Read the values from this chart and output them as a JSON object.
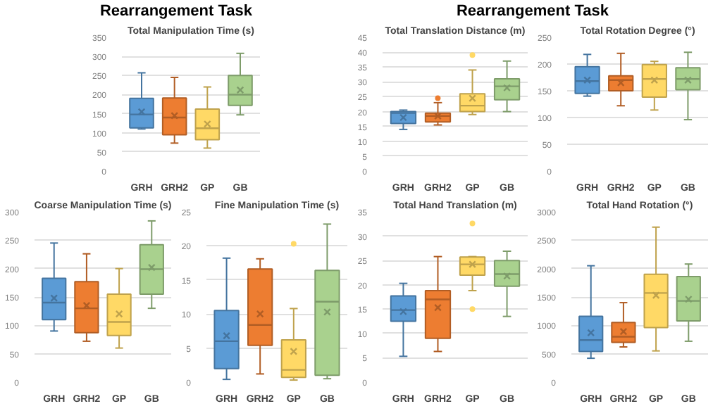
{
  "chart_data": [
    {
      "type": "box",
      "annotations": [
        "Rearrangement Task"
      ],
      "title": "Total Manipulation Time (s)",
      "categories": [
        "GRH",
        "GRH2",
        "GP",
        "GB"
      ],
      "colors": [
        "#5b9bd5",
        "#ed7d31",
        "#ffd966",
        "#a9d18e"
      ],
      "ylim": [
        0,
        350
      ],
      "yticks": [
        0,
        50,
        100,
        150,
        200,
        250,
        300,
        350
      ],
      "grid": "y",
      "boxes": [
        {
          "low": 110,
          "q1": 113,
          "median": 148,
          "q3": 190,
          "high": 257,
          "mean": 155
        },
        {
          "low": 73,
          "q1": 95,
          "median": 140,
          "q3": 191,
          "high": 245,
          "mean": 145
        },
        {
          "low": 60,
          "q1": 82,
          "median": 112,
          "q3": 162,
          "high": 220,
          "mean": 123
        },
        {
          "low": 147,
          "q1": 172,
          "median": 200,
          "q3": 250,
          "high": 308,
          "mean": 212
        }
      ]
    },
    {
      "type": "box",
      "annotations": [
        "Rearrangement Task"
      ],
      "title": "Total Translation Distance (m)",
      "categories": [
        "GRH",
        "GRH2",
        "GP",
        "GB"
      ],
      "colors": [
        "#5b9bd5",
        "#ed7d31",
        "#ffd966",
        "#a9d18e"
      ],
      "ylim": [
        0,
        45
      ],
      "yticks": [
        0,
        5,
        10,
        15,
        20,
        25,
        30,
        35,
        40,
        45
      ],
      "grid": "y",
      "boxes": [
        {
          "low": 14,
          "q1": 16,
          "median": 19.5,
          "q3": 20,
          "high": 20.5,
          "mean": 18
        },
        {
          "low": 15.5,
          "q1": 16.5,
          "median": 18.5,
          "q3": 19.5,
          "high": 23,
          "mean": 18.5,
          "outliers": [
            24.5
          ]
        },
        {
          "low": 19,
          "q1": 20,
          "median": 22,
          "q3": 26,
          "high": 34,
          "mean": 24.5,
          "outliers": [
            39
          ]
        },
        {
          "low": 20,
          "q1": 24,
          "median": 28.5,
          "q3": 31,
          "high": 37,
          "mean": 28
        }
      ]
    },
    {
      "type": "box",
      "title": "Total Rotation Degree (°)",
      "categories": [
        "GRH",
        "GRH2",
        "GP",
        "GB"
      ],
      "colors": [
        "#5b9bd5",
        "#ed7d31",
        "#ffd966",
        "#a9d18e"
      ],
      "ylim": [
        0,
        250
      ],
      "yticks": [
        0,
        50,
        100,
        150,
        200,
        250
      ],
      "grid": "y",
      "boxes": [
        {
          "low": 140,
          "q1": 145,
          "median": 168,
          "q3": 195,
          "high": 218,
          "mean": 170
        },
        {
          "low": 122,
          "q1": 150,
          "median": 170,
          "q3": 178,
          "high": 220,
          "mean": 165
        },
        {
          "low": 114,
          "q1": 138,
          "median": 172,
          "q3": 199,
          "high": 205,
          "mean": 170
        },
        {
          "low": 96,
          "q1": 152,
          "median": 172,
          "q3": 193,
          "high": 222,
          "mean": 170
        }
      ]
    },
    {
      "type": "box",
      "title": "Coarse Manipulation Time (s)",
      "categories": [
        "GRH",
        "GRH2",
        "GP",
        "GB"
      ],
      "colors": [
        "#5b9bd5",
        "#ed7d31",
        "#ffd966",
        "#a9d18e"
      ],
      "ylim": [
        0,
        300
      ],
      "yticks": [
        0,
        50,
        100,
        150,
        200,
        250,
        300
      ],
      "grid": "y",
      "boxes": [
        {
          "low": 90,
          "q1": 110,
          "median": 140,
          "q3": 183,
          "high": 245,
          "mean": 148
        },
        {
          "low": 72,
          "q1": 87,
          "median": 130,
          "q3": 177,
          "high": 226,
          "mean": 135
        },
        {
          "low": 60,
          "q1": 82,
          "median": 106,
          "q3": 155,
          "high": 200,
          "mean": 120
        },
        {
          "low": 130,
          "q1": 155,
          "median": 199,
          "q3": 242,
          "high": 284,
          "mean": 202
        }
      ]
    },
    {
      "type": "box",
      "title": "Fine Manipulation Time (s)",
      "categories": [
        "GRH",
        "GRH2",
        "GP",
        "GB"
      ],
      "colors": [
        "#5b9bd5",
        "#ed7d31",
        "#ffd966",
        "#a9d18e"
      ],
      "ylim": [
        0,
        25
      ],
      "yticks": [
        0,
        5,
        10,
        15,
        20,
        25
      ],
      "grid": "y",
      "boxes": [
        {
          "low": 0.4,
          "q1": 2,
          "median": 6,
          "q3": 10.5,
          "high": 18.2,
          "mean": 6.8
        },
        {
          "low": 1.2,
          "q1": 5.4,
          "median": 8.4,
          "q3": 16.6,
          "high": 18.1,
          "mean": 10
        },
        {
          "low": 0.3,
          "q1": 0.7,
          "median": 1.8,
          "q3": 6.2,
          "high": 10.8,
          "mean": 4.5,
          "outliers": [
            20.3
          ]
        },
        {
          "low": 0.5,
          "q1": 1,
          "median": 11.8,
          "q3": 16.4,
          "high": 23.2,
          "mean": 10.3
        }
      ]
    },
    {
      "type": "box",
      "title": "Total Hand Translation (m)",
      "categories": [
        "GRH",
        "GRH2",
        "GP",
        "GB"
      ],
      "colors": [
        "#5b9bd5",
        "#ed7d31",
        "#ffd966",
        "#a9d18e"
      ],
      "ylim": [
        0,
        35
      ],
      "yticks": [
        0,
        5,
        10,
        15,
        20,
        25,
        30,
        35
      ],
      "grid": "y",
      "boxes": [
        {
          "low": 5.3,
          "q1": 12.5,
          "median": 14.8,
          "q3": 17.7,
          "high": 20.3,
          "mean": 14.5
        },
        {
          "low": 6.3,
          "q1": 9,
          "median": 17,
          "q3": 18.8,
          "high": 25.8,
          "mean": 15.3
        },
        {
          "low": 18.8,
          "q1": 22,
          "median": 24.2,
          "q3": 25.7,
          "high": 25.8,
          "mean": 24.2,
          "outliers": [
            32.6,
            15
          ]
        },
        {
          "low": 13.5,
          "q1": 19.7,
          "median": 22.2,
          "q3": 25,
          "high": 26.9,
          "mean": 21.8
        }
      ]
    },
    {
      "type": "box",
      "title": "Total Hand Rotation (°)",
      "categories": [
        "GRH",
        "GRH2",
        "GP",
        "GB"
      ],
      "colors": [
        "#5b9bd5",
        "#ed7d31",
        "#ffd966",
        "#a9d18e"
      ],
      "ylim": [
        0,
        3000
      ],
      "yticks": [
        0,
        500,
        1000,
        1500,
        2000,
        2500,
        3000
      ],
      "grid": "y",
      "boxes": [
        {
          "low": 420,
          "q1": 540,
          "median": 740,
          "q3": 1160,
          "high": 2050,
          "mean": 870
        },
        {
          "low": 620,
          "q1": 700,
          "median": 800,
          "q3": 1050,
          "high": 1400,
          "mean": 890
        },
        {
          "low": 550,
          "q1": 960,
          "median": 1570,
          "q3": 1900,
          "high": 2730,
          "mean": 1530
        },
        {
          "low": 720,
          "q1": 1080,
          "median": 1430,
          "q3": 1860,
          "high": 2080,
          "mean": 1460
        }
      ]
    }
  ]
}
